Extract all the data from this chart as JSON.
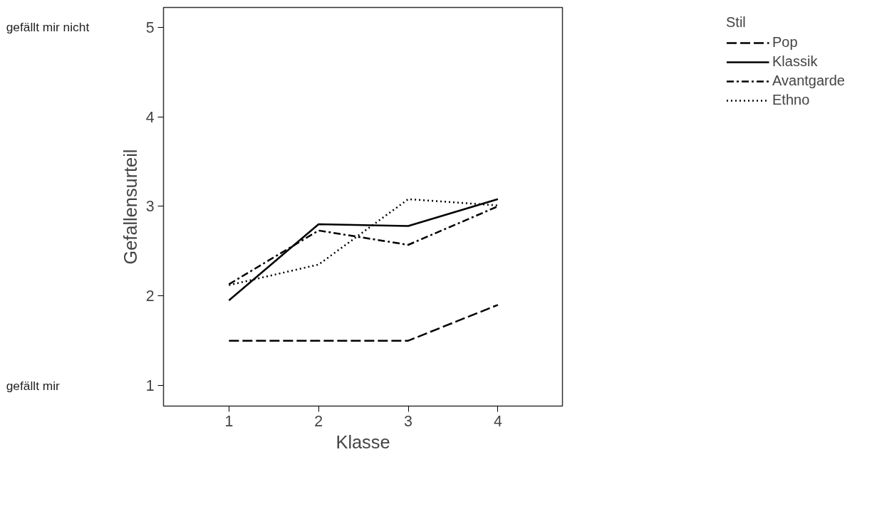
{
  "chart_data": {
    "type": "line",
    "xlabel": "Klasse",
    "ylabel": "Gefallensurteil",
    "legend_title": "Stil",
    "legend": "top right",
    "grid": false,
    "marker": "none",
    "x": [
      1,
      2,
      3,
      4
    ],
    "xlim": [
      0.27,
      4.72
    ],
    "xticks": [
      1,
      2,
      3,
      4
    ],
    "ylim": [
      0.77,
      5.22
    ],
    "yticks": [
      1,
      2,
      3,
      4,
      5
    ],
    "annotations": [
      "gefällt mir nicht",
      "gefällt mir"
    ],
    "series": [
      {
        "name": "Pop",
        "color": "#000000",
        "line_style": "longdash",
        "values": [
          1.5,
          1.5,
          1.5,
          1.9
        ]
      },
      {
        "name": "Klassik",
        "color": "#000000",
        "line_style": "solid",
        "values": [
          1.95,
          2.8,
          2.78,
          3.08
        ]
      },
      {
        "name": "Avantgarde",
        "color": "#000000",
        "line_style": "dashdot",
        "values": [
          2.13,
          2.73,
          2.57,
          3.0
        ]
      },
      {
        "name": "Ethno",
        "color": "#000000",
        "line_style": "dotted",
        "values": [
          2.12,
          2.35,
          3.08,
          3.01
        ]
      }
    ]
  }
}
